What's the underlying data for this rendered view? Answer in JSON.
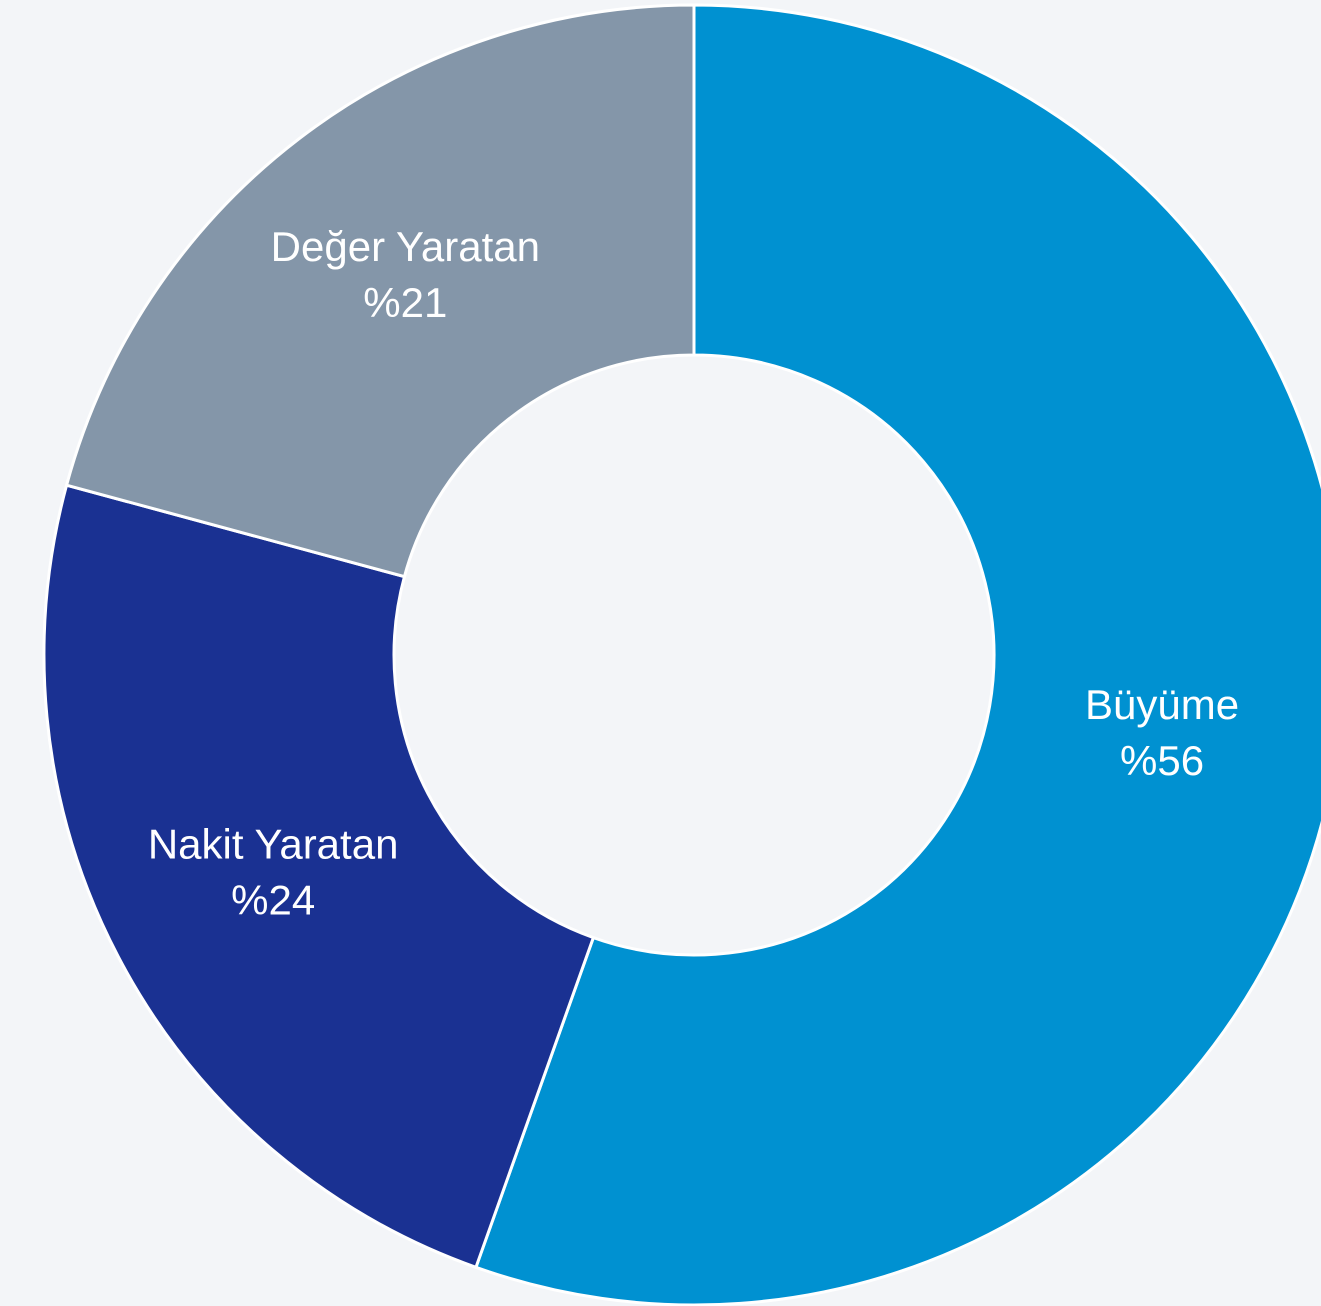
{
  "chart_data": {
    "type": "donut",
    "categories": [
      "Büyüme",
      "Nakit Yaratan",
      "Değer Yaratan"
    ],
    "values": [
      56,
      24,
      21
    ],
    "value_labels": [
      "%56",
      "%24",
      "%21"
    ],
    "colors": [
      "#0091d1",
      "#1a3192",
      "#8496a9"
    ]
  }
}
